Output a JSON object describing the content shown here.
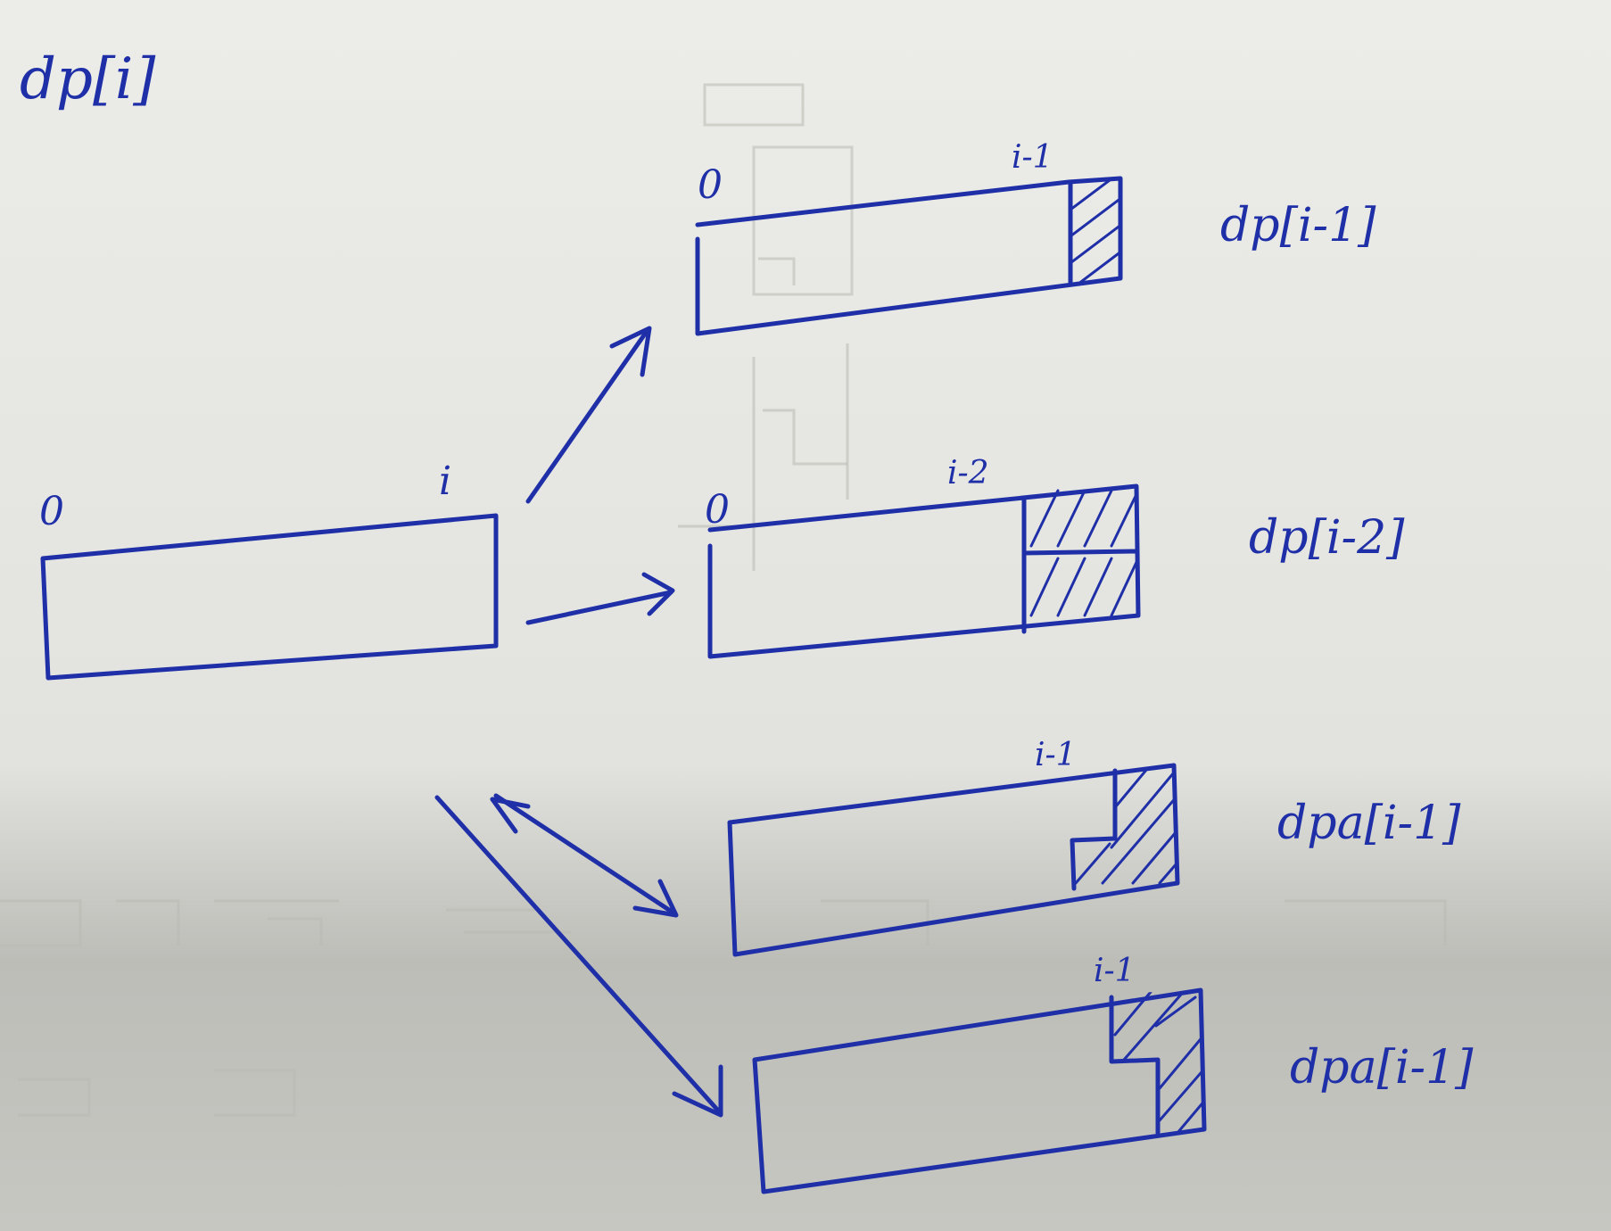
{
  "title": "dp[i]",
  "source": {
    "start_label": "0",
    "end_label": "i"
  },
  "cases": [
    {
      "label": "dp[i-1]",
      "start_label": "0",
      "end_label": "i-1"
    },
    {
      "label": "dp[i-2]",
      "start_label": "0",
      "end_label": "i-2"
    },
    {
      "label": "dpa[i-1]",
      "end_label": "i-1"
    },
    {
      "label": "dpa[i-1]",
      "end_label": "i-1"
    }
  ],
  "colors": {
    "ink": "#1f2fa8",
    "paper": "#e4e4e0",
    "bleed": "#b9b9b3"
  }
}
